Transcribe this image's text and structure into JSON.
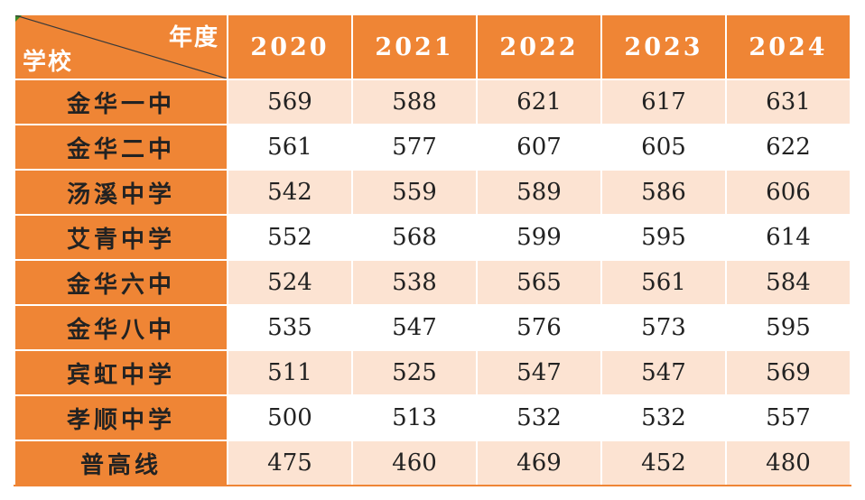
{
  "table": {
    "corner_top": "年度",
    "corner_bottom": "学校",
    "years": [
      "2020",
      "2021",
      "2022",
      "2023",
      "2024"
    ],
    "rows": [
      {
        "school": "金华一中",
        "values": [
          "569",
          "588",
          "621",
          "617",
          "631"
        ]
      },
      {
        "school": "金华二中",
        "values": [
          "561",
          "577",
          "607",
          "605",
          "622"
        ]
      },
      {
        "school": "汤溪中学",
        "values": [
          "542",
          "559",
          "589",
          "586",
          "606"
        ]
      },
      {
        "school": "艾青中学",
        "values": [
          "552",
          "568",
          "599",
          "595",
          "614"
        ]
      },
      {
        "school": "金华六中",
        "values": [
          "524",
          "538",
          "565",
          "561",
          "584"
        ]
      },
      {
        "school": "金华八中",
        "values": [
          "535",
          "547",
          "576",
          "573",
          "595"
        ]
      },
      {
        "school": "宾虹中学",
        "values": [
          "511",
          "525",
          "547",
          "547",
          "569"
        ]
      },
      {
        "school": "孝顺中学",
        "values": [
          "500",
          "513",
          "532",
          "532",
          "557"
        ]
      },
      {
        "school": "普高线",
        "values": [
          "475",
          "460",
          "469",
          "452",
          "480"
        ]
      }
    ]
  },
  "colors": {
    "header_bg": "#ef8535",
    "stripe_bg": "#fce3d2",
    "plain_bg": "#ffffff"
  }
}
